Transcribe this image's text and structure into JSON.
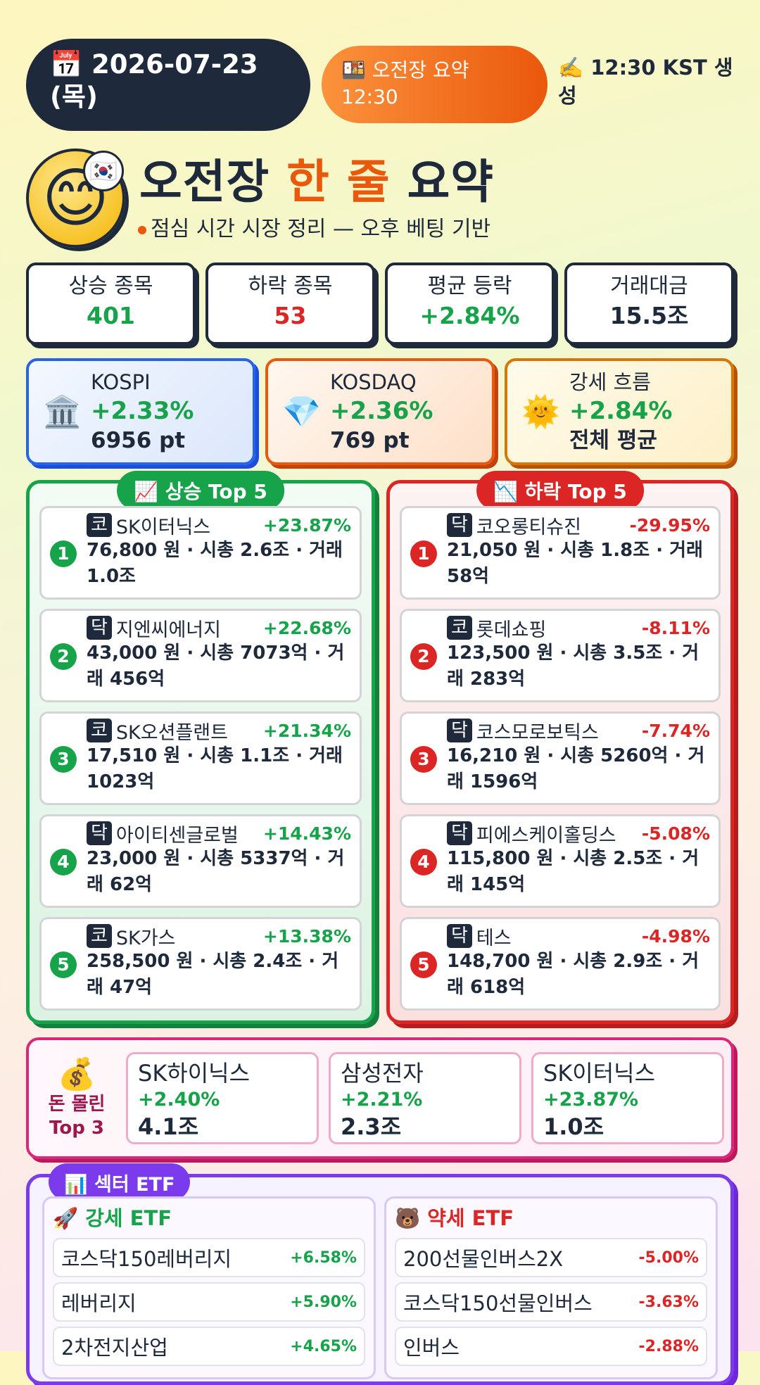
{
  "header": {
    "date": "2026-07-23 (목)",
    "session": "오전장 요약 12:30",
    "generated": "12:30 KST 생성"
  },
  "title": {
    "part1": "오전장",
    "highlight": "한 줄",
    "part2": "요약",
    "subtitle": "점심 시간 시장 정리 — 오후 베팅 기반"
  },
  "stats": [
    {
      "label": "상승 종목",
      "value": "401",
      "tone": "up"
    },
    {
      "label": "하락 종목",
      "value": "53",
      "tone": "down"
    },
    {
      "label": "평균 등락",
      "value": "+2.84%",
      "tone": "up"
    },
    {
      "label": "거래대금",
      "value": "15.5조",
      "tone": "plain"
    }
  ],
  "indices": [
    {
      "label": "KOSPI",
      "change": "+2.33%",
      "value": "6956 pt"
    },
    {
      "label": "KOSDAQ",
      "change": "+2.36%",
      "value": "769 pt"
    },
    {
      "label": "강세 흐름",
      "change": "+2.84%",
      "value": "전체 평균"
    }
  ],
  "gainers": {
    "title": "상승 Top 5",
    "items": [
      {
        "rank": 1,
        "market": "코",
        "name": "SK이터닉스",
        "change": "+23.87%",
        "detail": "76,800 원 · 시총 2.6조 · 거래 1.0조"
      },
      {
        "rank": 2,
        "market": "닥",
        "name": "지엔씨에너지",
        "change": "+22.68%",
        "detail": "43,000 원 · 시총 7073억 · 거래 456억"
      },
      {
        "rank": 3,
        "market": "코",
        "name": "SK오션플랜트",
        "change": "+21.34%",
        "detail": "17,510 원 · 시총 1.1조 · 거래 1023억"
      },
      {
        "rank": 4,
        "market": "닥",
        "name": "아이티센글로벌",
        "change": "+14.43%",
        "detail": "23,000 원 · 시총 5337억 · 거래 62억"
      },
      {
        "rank": 5,
        "market": "코",
        "name": "SK가스",
        "change": "+13.38%",
        "detail": "258,500 원 · 시총 2.4조 · 거래 47억"
      }
    ]
  },
  "losers": {
    "title": "하락 Top 5",
    "items": [
      {
        "rank": 1,
        "market": "닥",
        "name": "코오롱티슈진",
        "change": "-29.95%",
        "detail": "21,050 원 · 시총 1.8조 · 거래 58억"
      },
      {
        "rank": 2,
        "market": "코",
        "name": "롯데쇼핑",
        "change": "-8.11%",
        "detail": "123,500 원 · 시총 3.5조 · 거래 283억"
      },
      {
        "rank": 3,
        "market": "닥",
        "name": "코스모로보틱스",
        "change": "-7.74%",
        "detail": "16,210 원 · 시총 5260억 · 거래 1596억"
      },
      {
        "rank": 4,
        "market": "닥",
        "name": "피에스케이홀딩스",
        "change": "-5.08%",
        "detail": "115,800 원 · 시총 2.5조 · 거래 145억"
      },
      {
        "rank": 5,
        "market": "닥",
        "name": "테스",
        "change": "-4.98%",
        "detail": "148,700 원 · 시총 2.9조 · 거래 618억"
      }
    ]
  },
  "money": {
    "title": "돈 몰린 Top 3",
    "items": [
      {
        "name": "SK하이닉스",
        "change": "+2.40%",
        "value": "4.1조"
      },
      {
        "name": "삼성전자",
        "change": "+2.21%",
        "value": "2.3조"
      },
      {
        "name": "SK이터닉스",
        "change": "+23.87%",
        "value": "1.0조"
      }
    ]
  },
  "etf": {
    "title": "섹터 ETF",
    "strong": {
      "title": "강세 ETF",
      "items": [
        {
          "name": "코스닥150레버리지",
          "change": "+6.58%"
        },
        {
          "name": "레버리지",
          "change": "+5.90%"
        },
        {
          "name": "2차전지산업",
          "change": "+4.65%"
        }
      ]
    },
    "weak": {
      "title": "약세 ETF",
      "items": [
        {
          "name": "200선물인버스2X",
          "change": "-5.00%"
        },
        {
          "name": "코스닥150선물인버스",
          "change": "-3.63%"
        },
        {
          "name": "인버스",
          "change": "-2.88%"
        }
      ]
    }
  }
}
